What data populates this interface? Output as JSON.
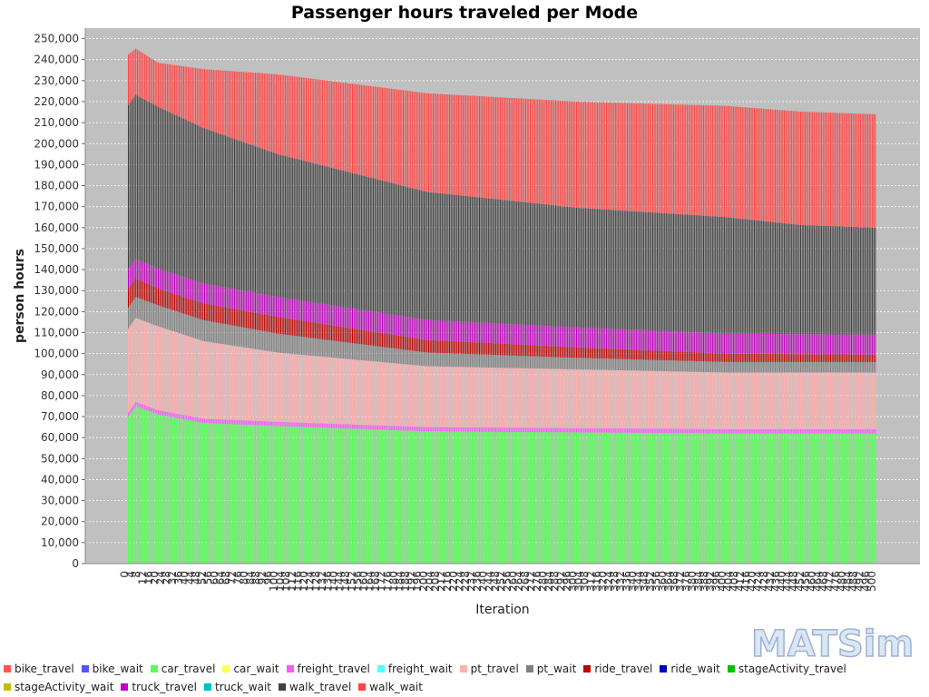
{
  "chart_data": {
    "type": "bar",
    "stacked": true,
    "title": "Passenger hours traveled per Mode",
    "xlabel": "Iteration",
    "ylabel": "person hours",
    "ylim": [
      0,
      255000
    ],
    "yticks": [
      0,
      10000,
      20000,
      30000,
      40000,
      50000,
      60000,
      70000,
      80000,
      90000,
      100000,
      110000,
      120000,
      130000,
      140000,
      150000,
      160000,
      170000,
      180000,
      190000,
      200000,
      210000,
      220000,
      230000,
      240000,
      250000
    ],
    "ytick_labels": [
      "0",
      "10,000",
      "20,000",
      "30,000",
      "40,000",
      "50,000",
      "60,000",
      "70,000",
      "80,000",
      "90,000",
      "100,000",
      "110,000",
      "120,000",
      "130,000",
      "140,000",
      "150,000",
      "160,000",
      "170,000",
      "180,000",
      "190,000",
      "200,000",
      "210,000",
      "220,000",
      "230,000",
      "240,000",
      "250,000"
    ],
    "grid": true,
    "legend_position": "bottom",
    "iterations": {
      "start": 0,
      "end": 500
    },
    "series": [
      {
        "name": "bike_travel",
        "color": "#ff5555",
        "values_at": {
          "0": 0,
          "500": 0
        }
      },
      {
        "name": "bike_wait",
        "color": "#5555ff",
        "values_at": {
          "0": 0,
          "500": 0
        }
      },
      {
        "name": "car_travel",
        "color": "#55ff55",
        "values_at": {
          "0": 70000,
          "5": 75000,
          "20": 71000,
          "50": 67000,
          "100": 65500,
          "200": 63000,
          "300": 62500,
          "400": 62000,
          "500": 62000
        }
      },
      {
        "name": "car_wait",
        "color": "#ffff55",
        "values_at": {
          "0": 0,
          "500": 0
        }
      },
      {
        "name": "freight_travel",
        "color": "#ff55ff",
        "values_at": {
          "0": 2000,
          "500": 2000
        }
      },
      {
        "name": "freight_wait",
        "color": "#55ffff",
        "values_at": {
          "0": 0,
          "500": 0
        }
      },
      {
        "name": "pt_travel",
        "color": "#ffafaf",
        "values_at": {
          "0": 40000,
          "20": 40000,
          "50": 37000,
          "100": 33000,
          "200": 29000,
          "300": 28000,
          "400": 27000,
          "500": 27000
        }
      },
      {
        "name": "pt_wait",
        "color": "#808080",
        "values_at": {
          "0": 10000,
          "20": 10000,
          "50": 10000,
          "100": 9000,
          "200": 6500,
          "300": 5500,
          "400": 5000,
          "500": 5000
        }
      },
      {
        "name": "ride_travel",
        "color": "#c00000",
        "values_at": {
          "0": 9000,
          "20": 8000,
          "50": 8000,
          "100": 8000,
          "200": 6000,
          "300": 5000,
          "400": 4000,
          "500": 3500
        }
      },
      {
        "name": "ride_wait",
        "color": "#0000c0",
        "values_at": {
          "0": 0,
          "500": 0
        }
      },
      {
        "name": "stageActivity_travel",
        "color": "#00c000",
        "values_at": {
          "0": 0,
          "500": 0
        }
      },
      {
        "name": "stageActivity_wait",
        "color": "#c0c000",
        "values_at": {
          "0": 0,
          "500": 0
        }
      },
      {
        "name": "truck_travel",
        "color": "#c000c0",
        "values_at": {
          "0": 9500,
          "20": 9500,
          "50": 9500,
          "100": 9500,
          "200": 9500,
          "300": 9500,
          "400": 9500,
          "500": 9500
        }
      },
      {
        "name": "truck_wait",
        "color": "#00c0c0",
        "values_at": {
          "0": 0,
          "500": 0
        }
      },
      {
        "name": "walk_travel",
        "color": "#404040",
        "values_at": {
          "0": 78000,
          "5": 78000,
          "20": 77000,
          "50": 74000,
          "100": 68000,
          "200": 61000,
          "300": 57000,
          "400": 55500,
          "450": 52000,
          "500": 51000
        }
      },
      {
        "name": "walk_wait",
        "color": "#ff4444",
        "values_at": {
          "0": 24000,
          "5": 22000,
          "20": 21000,
          "50": 28000,
          "100": 38000,
          "200": 47000,
          "300": 50500,
          "400": 53000,
          "450": 54000,
          "500": 54000
        }
      }
    ]
  },
  "logo": {
    "text": "MATSim"
  },
  "colors": {
    "plot_background": "#c0c0c0",
    "gridline": "#ffffff"
  }
}
